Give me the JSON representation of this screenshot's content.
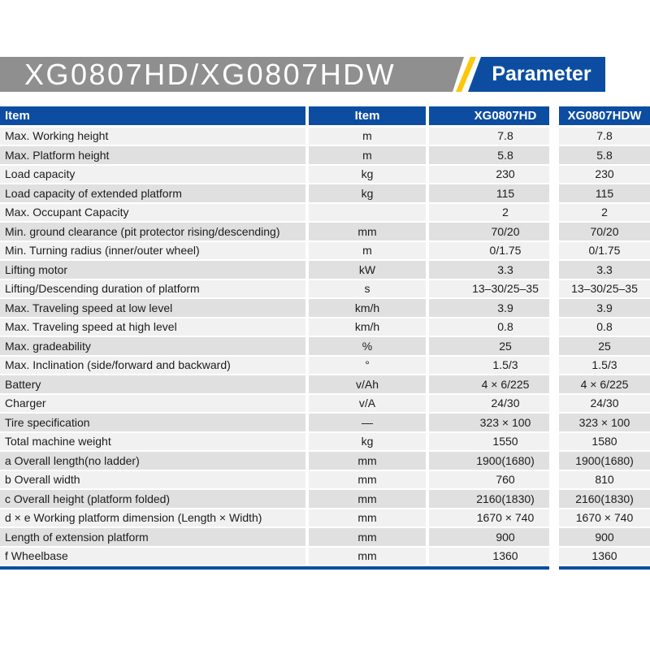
{
  "colors": {
    "brand_blue": "#0d4da1",
    "accent_yellow": "#ffc60a",
    "banner_gray": "#8f8f8f",
    "row_light": "#f1f1f1",
    "row_dark": "#e0e0e0"
  },
  "title_bar": {
    "model": "XG0807HD/XG0807HDW",
    "tag": "Parameter"
  },
  "table": {
    "headers": [
      "Item",
      "Item",
      "XG0807HD",
      "XG0807HDW"
    ],
    "rows": [
      {
        "item": "Max. Working height",
        "unit": "m",
        "hd": "7.8",
        "hdw": "7.8"
      },
      {
        "item": "Max. Platform height",
        "unit": "m",
        "hd": "5.8",
        "hdw": "5.8"
      },
      {
        "item": "Load capacity",
        "unit": "kg",
        "hd": "230",
        "hdw": "230"
      },
      {
        "item": "Load capacity of extended platform",
        "unit": "kg",
        "hd": "115",
        "hdw": "115"
      },
      {
        "item": "Max. Occupant Capacity",
        "unit": "",
        "hd": "2",
        "hdw": "2"
      },
      {
        "item": "Min. ground clearance (pit protector rising/descending)",
        "unit": "mm",
        "hd": "70/20",
        "hdw": "70/20"
      },
      {
        "item": "Min. Turning radius (inner/outer wheel)",
        "unit": "m",
        "hd": "0/1.75",
        "hdw": "0/1.75"
      },
      {
        "item": "Lifting motor",
        "unit": "kW",
        "hd": "3.3",
        "hdw": "3.3"
      },
      {
        "item": "Lifting/Descending duration of platform",
        "unit": "s",
        "hd": "13–30/25–35",
        "hdw": "13–30/25–35"
      },
      {
        "item": "Max. Traveling speed at low level",
        "unit": "km/h",
        "hd": "3.9",
        "hdw": "3.9"
      },
      {
        "item": "Max. Traveling speed at high level",
        "unit": "km/h",
        "hd": "0.8",
        "hdw": "0.8"
      },
      {
        "item": "Max. gradeability",
        "unit": "%",
        "hd": "25",
        "hdw": "25"
      },
      {
        "item": "Max. Inclination (side/forward and backward)",
        "unit": "°",
        "hd": "1.5/3",
        "hdw": "1.5/3"
      },
      {
        "item": "Battery",
        "unit": "v/Ah",
        "hd": "4 × 6/225",
        "hdw": "4 × 6/225"
      },
      {
        "item": "Charger",
        "unit": "v/A",
        "hd": "24/30",
        "hdw": "24/30"
      },
      {
        "item": "Tire specification",
        "unit": "—",
        "hd": "323 × 100",
        "hdw": "323 × 100"
      },
      {
        "item": "Total machine weight",
        "unit": "kg",
        "hd": "1550",
        "hdw": "1580"
      },
      {
        "item": "a Overall length(no ladder)",
        "unit": "mm",
        "hd": "1900(1680)",
        "hdw": "1900(1680)"
      },
      {
        "item": "b Overall width",
        "unit": "mm",
        "hd": "760",
        "hdw": "810"
      },
      {
        "item": "c Overall height (platform folded)",
        "unit": "mm",
        "hd": "2160(1830)",
        "hdw": "2160(1830)"
      },
      {
        "item": "d × e Working platform dimension (Length × Width)",
        "unit": "mm",
        "hd": "1670 × 740",
        "hdw": "1670 × 740"
      },
      {
        "item": "Length of extension platform",
        "unit": "mm",
        "hd": "900",
        "hdw": "900"
      },
      {
        "item": "f Wheelbase",
        "unit": "mm",
        "hd": "1360",
        "hdw": "1360"
      }
    ]
  }
}
